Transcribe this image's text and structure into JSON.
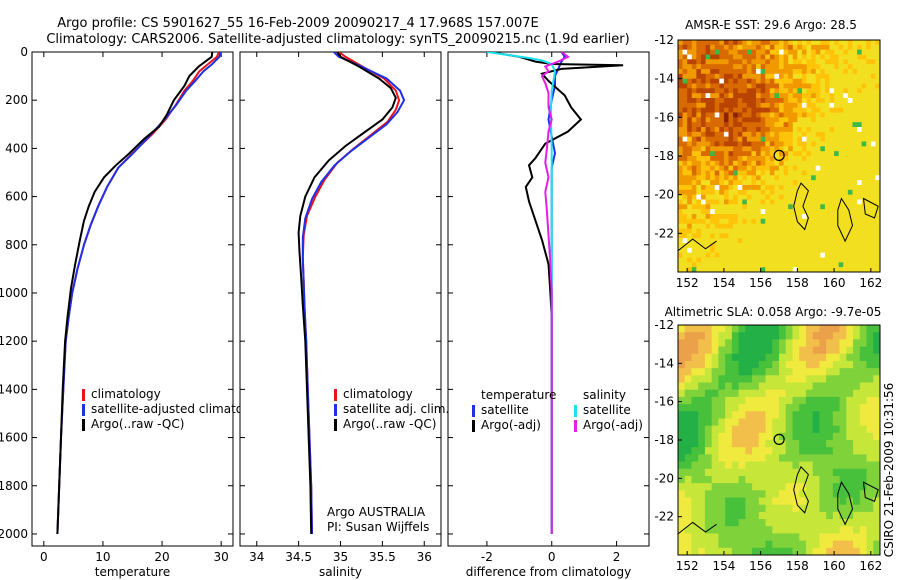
{
  "titles": {
    "line1": "Argo profile: CS 5901627_55 16-Feb-2009 20090217_4 17.968S 157.007E",
    "line2": "Climatology: CARS2006. Satellite-adjusted climatology: synTS_20090215.nc (1.9d earlier)",
    "stamp": "CSIRO 21-Feb-2009 10:31:56"
  },
  "colors": {
    "climatology": "#e8141b",
    "satellite": "#1f30e6",
    "argo": "#000000",
    "sat_diff_salinity": "#1ee1f0",
    "argo_diff_salinity": "#e61ee6"
  },
  "chart_data": [
    {
      "type": "line",
      "name": "temperature-profile",
      "xlabel": "temperature",
      "xlim": [
        -2,
        32
      ],
      "ylim": [
        2050,
        0
      ],
      "xticks": [
        0,
        10,
        20,
        30
      ],
      "yticks": [
        0,
        200,
        400,
        600,
        800,
        1000,
        1200,
        1400,
        1600,
        1800,
        2000
      ],
      "legend": {
        "position": "lower-right",
        "entries": [
          "climatology",
          "satellite-adjusted climatology",
          "Argo(..raw -QC)"
        ]
      },
      "series": [
        {
          "name": "climatology",
          "color_key": "climatology",
          "points": [
            [
              29.6,
              0
            ],
            [
              29.3,
              20
            ],
            [
              27.8,
              50
            ],
            [
              26.3,
              80
            ],
            [
              25.2,
              120
            ],
            [
              23.8,
              160
            ],
            [
              22.3,
              220
            ],
            [
              20.6,
              280
            ],
            [
              18.4,
              340
            ],
            [
              15.0,
              420
            ],
            [
              12.6,
              480
            ],
            [
              10.7,
              560
            ],
            [
              9.2,
              640
            ],
            [
              7.9,
              720
            ],
            [
              6.8,
              800
            ],
            [
              5.7,
              900
            ],
            [
              4.8,
              1000
            ],
            [
              4.2,
              1100
            ],
            [
              3.7,
              1200
            ],
            [
              3.3,
              1400
            ],
            [
              2.9,
              1600
            ],
            [
              2.6,
              1800
            ],
            [
              2.3,
              2000
            ]
          ]
        },
        {
          "name": "satellite-adjusted climatology",
          "color_key": "satellite",
          "points": [
            [
              29.9,
              0
            ],
            [
              29.7,
              20
            ],
            [
              28.5,
              50
            ],
            [
              27.0,
              80
            ],
            [
              25.6,
              120
            ],
            [
              24.1,
              160
            ],
            [
              22.4,
              220
            ],
            [
              20.4,
              280
            ],
            [
              18.2,
              340
            ],
            [
              15.1,
              420
            ],
            [
              12.6,
              480
            ],
            [
              10.7,
              560
            ],
            [
              9.2,
              640
            ],
            [
              7.9,
              720
            ],
            [
              6.8,
              800
            ],
            [
              5.7,
              900
            ],
            [
              4.8,
              1000
            ],
            [
              4.2,
              1100
            ],
            [
              3.7,
              1200
            ],
            [
              3.3,
              1400
            ],
            [
              2.9,
              1600
            ],
            [
              2.6,
              1800
            ],
            [
              2.3,
              2000
            ]
          ]
        },
        {
          "name": "Argo(..raw -QC)",
          "color_key": "argo",
          "points": [
            [
              28.5,
              0
            ],
            [
              28.4,
              20
            ],
            [
              26.2,
              60
            ],
            [
              24.6,
              100
            ],
            [
              23.8,
              140
            ],
            [
              22.0,
              200
            ],
            [
              20.8,
              260
            ],
            [
              19.5,
              310
            ],
            [
              17.0,
              360
            ],
            [
              14.5,
              420
            ],
            [
              12.2,
              470
            ],
            [
              10.2,
              520
            ],
            [
              8.6,
              580
            ],
            [
              7.6,
              640
            ],
            [
              6.8,
              700
            ],
            [
              6.1,
              780
            ],
            [
              5.3,
              880
            ],
            [
              4.6,
              980
            ],
            [
              4.0,
              1100
            ],
            [
              3.6,
              1200
            ],
            [
              3.2,
              1400
            ],
            [
              2.9,
              1600
            ],
            [
              2.6,
              1800
            ],
            [
              2.3,
              2000
            ]
          ]
        }
      ]
    },
    {
      "type": "line",
      "name": "salinity-profile",
      "xlabel": "salinity",
      "xlim": [
        33.8,
        36.2
      ],
      "ylim": [
        2050,
        0
      ],
      "xticks": [
        34,
        34.5,
        35,
        35.5,
        36
      ],
      "legend": {
        "position": "lower-right",
        "entries": [
          "climatology",
          "satellite adj. clim.",
          "Argo(..raw -QC)"
        ]
      },
      "annotation": [
        "Argo AUSTRALIA",
        "PI: Susan Wijffels"
      ],
      "series": [
        {
          "name": "climatology",
          "color_key": "climatology",
          "points": [
            [
              34.98,
              0
            ],
            [
              35.06,
              20
            ],
            [
              35.26,
              60
            ],
            [
              35.52,
              110
            ],
            [
              35.66,
              160
            ],
            [
              35.7,
              200
            ],
            [
              35.66,
              240
            ],
            [
              35.56,
              290
            ],
            [
              35.38,
              340
            ],
            [
              35.16,
              400
            ],
            [
              34.96,
              460
            ],
            [
              34.81,
              530
            ],
            [
              34.7,
              600
            ],
            [
              34.6,
              680
            ],
            [
              34.56,
              760
            ],
            [
              34.55,
              850
            ],
            [
              34.56,
              950
            ],
            [
              34.57,
              1050
            ],
            [
              34.59,
              1200
            ],
            [
              34.61,
              1400
            ],
            [
              34.63,
              1600
            ],
            [
              34.65,
              1800
            ],
            [
              34.66,
              2000
            ]
          ]
        },
        {
          "name": "satellite adj. clim.",
          "color_key": "satellite",
          "points": [
            [
              34.92,
              0
            ],
            [
              34.98,
              20
            ],
            [
              35.25,
              60
            ],
            [
              35.55,
              110
            ],
            [
              35.71,
              160
            ],
            [
              35.76,
              200
            ],
            [
              35.68,
              250
            ],
            [
              35.55,
              300
            ],
            [
              35.36,
              350
            ],
            [
              35.13,
              410
            ],
            [
              34.93,
              470
            ],
            [
              34.77,
              540
            ],
            [
              34.66,
              610
            ],
            [
              34.58,
              690
            ],
            [
              34.55,
              770
            ],
            [
              34.55,
              860
            ],
            [
              34.56,
              960
            ],
            [
              34.57,
              1060
            ],
            [
              34.59,
              1200
            ],
            [
              34.61,
              1400
            ],
            [
              34.63,
              1600
            ],
            [
              34.65,
              1800
            ],
            [
              34.66,
              2000
            ]
          ]
        },
        {
          "name": "Argo(..raw -QC)",
          "color_key": "argo",
          "points": [
            [
              34.96,
              0
            ],
            [
              35.0,
              20
            ],
            [
              35.22,
              60
            ],
            [
              35.46,
              110
            ],
            [
              35.6,
              150
            ],
            [
              35.66,
              190
            ],
            [
              35.62,
              230
            ],
            [
              35.5,
              280
            ],
            [
              35.3,
              330
            ],
            [
              35.06,
              390
            ],
            [
              34.86,
              450
            ],
            [
              34.69,
              520
            ],
            [
              34.58,
              600
            ],
            [
              34.52,
              680
            ],
            [
              34.5,
              750
            ],
            [
              34.51,
              830
            ],
            [
              34.53,
              930
            ],
            [
              34.55,
              1050
            ],
            [
              34.58,
              1200
            ],
            [
              34.6,
              1400
            ],
            [
              34.62,
              1600
            ],
            [
              34.64,
              1800
            ],
            [
              34.65,
              2000
            ]
          ]
        }
      ]
    },
    {
      "type": "line",
      "name": "difference-profile",
      "xlabel": "difference from climatology",
      "xlim": [
        -3.2,
        3.0
      ],
      "ylim": [
        2050,
        0
      ],
      "xticks": [
        -2,
        0,
        2
      ],
      "legend": {
        "position": "lower-right",
        "groups": [
          {
            "header": "temperature",
            "entries": [
              "satellite",
              "Argo(-adj)"
            ]
          },
          {
            "header": "salinity",
            "entries": [
              "satellite",
              "Argo(-adj)"
            ]
          }
        ]
      },
      "series": [
        {
          "name": "temperature satellite",
          "color_key": "satellite",
          "points": [
            [
              0.3,
              0
            ],
            [
              0.4,
              20
            ],
            [
              0.3,
              40
            ],
            [
              0.2,
              70
            ],
            [
              0.1,
              100
            ],
            [
              0.1,
              140
            ],
            [
              0.0,
              200
            ],
            [
              -0.1,
              280
            ],
            [
              0.0,
              350
            ],
            [
              0.1,
              420
            ],
            [
              0.0,
              480
            ],
            [
              0.0,
              560
            ],
            [
              0.0,
              640
            ],
            [
              0.0,
              720
            ],
            [
              0.0,
              800
            ],
            [
              0.0,
              1000
            ],
            [
              0.0,
              2000
            ]
          ]
        },
        {
          "name": "temperature Argo(-adj)",
          "color_key": "argo",
          "points": [
            [
              -1.9,
              0
            ],
            [
              -1.0,
              20
            ],
            [
              -0.5,
              40
            ],
            [
              0.0,
              50
            ],
            [
              2.2,
              55
            ],
            [
              0.3,
              70
            ],
            [
              -0.3,
              90
            ],
            [
              -0.1,
              120
            ],
            [
              0.4,
              180
            ],
            [
              0.6,
              230
            ],
            [
              0.9,
              280
            ],
            [
              0.5,
              330
            ],
            [
              -0.2,
              380
            ],
            [
              -0.5,
              440
            ],
            [
              -0.7,
              470
            ],
            [
              -0.6,
              520
            ],
            [
              -0.8,
              560
            ],
            [
              -0.7,
              620
            ],
            [
              -0.5,
              700
            ],
            [
              -0.3,
              780
            ],
            [
              -0.1,
              880
            ],
            [
              -0.05,
              980
            ],
            [
              0.0,
              1100
            ],
            [
              0.0,
              1300
            ],
            [
              0.0,
              2000
            ]
          ]
        },
        {
          "name": "salinity satellite",
          "color_key": "sat_diff_salinity",
          "points": [
            [
              -2.0,
              0
            ],
            [
              -1.2,
              15
            ],
            [
              -0.7,
              25
            ],
            [
              -0.3,
              35
            ],
            [
              0.0,
              50
            ],
            [
              0.1,
              80
            ],
            [
              0.05,
              120
            ],
            [
              0.0,
              160
            ],
            [
              -0.02,
              220
            ],
            [
              -0.02,
              300
            ],
            [
              0.0,
              400
            ],
            [
              0.0,
              500
            ],
            [
              0.0,
              700
            ],
            [
              0.0,
              1000
            ],
            [
              0.0,
              2000
            ]
          ]
        },
        {
          "name": "salinity Argo(-adj)",
          "color_key": "argo_diff_salinity",
          "points": [
            [
              0.3,
              0
            ],
            [
              0.5,
              20
            ],
            [
              0.2,
              40
            ],
            [
              -0.2,
              60
            ],
            [
              -0.1,
              80
            ],
            [
              -0.3,
              100
            ],
            [
              -0.2,
              130
            ],
            [
              -0.1,
              170
            ],
            [
              -0.1,
              230
            ],
            [
              0.0,
              280
            ],
            [
              -0.1,
              330
            ],
            [
              -0.15,
              400
            ],
            [
              -0.2,
              460
            ],
            [
              -0.1,
              520
            ],
            [
              -0.2,
              580
            ],
            [
              -0.15,
              660
            ],
            [
              -0.1,
              760
            ],
            [
              -0.05,
              860
            ],
            [
              0.0,
              1000
            ],
            [
              0.0,
              2000
            ]
          ]
        }
      ]
    }
  ],
  "maps": [
    {
      "name": "sst-map",
      "title": "AMSR-E SST: 29.6 Argo: 28.5",
      "xlim": [
        151.5,
        162.5
      ],
      "ylim": [
        -24,
        -12
      ],
      "xticks": [
        152,
        154,
        156,
        158,
        160,
        162
      ],
      "yticks": [
        -12,
        -14,
        -16,
        -18,
        -20,
        -22
      ],
      "argo_position": {
        "lon": 157.007,
        "lat": -17.968
      },
      "colormap": "hot-orange-yellow-green"
    },
    {
      "name": "sla-map",
      "title": "Altimetric SLA: 0.058 Argo: -9.7e-05",
      "xlim": [
        151.5,
        162.5
      ],
      "ylim": [
        -24,
        -12
      ],
      "xticks": [
        152,
        154,
        156,
        158,
        160,
        162
      ],
      "yticks": [
        -12,
        -14,
        -16,
        -18,
        -20,
        -22
      ],
      "argo_position": {
        "lon": 157.007,
        "lat": -17.968
      },
      "colormap": "green-yellow-orange"
    }
  ]
}
